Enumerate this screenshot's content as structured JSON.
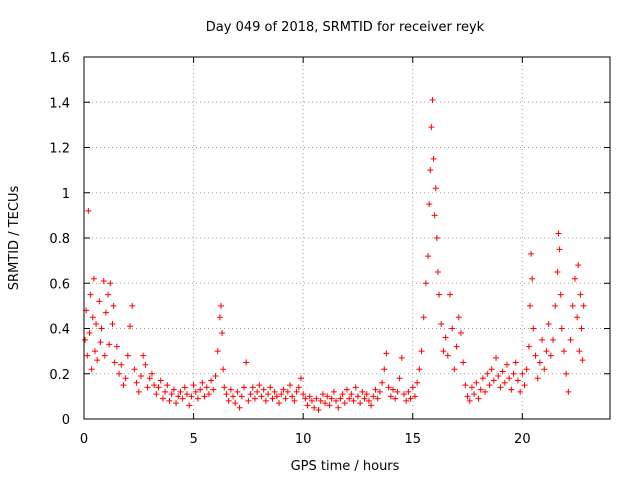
{
  "chart_data": {
    "type": "scatter",
    "title": "Day 049 of 2018, SRMTID for receiver reyk",
    "xlabel": "GPS time / hours",
    "ylabel": "SRMTID / TECUs",
    "xlim": [
      0,
      24
    ],
    "ylim": [
      0,
      1.6
    ],
    "xticks": [
      0,
      5,
      10,
      15,
      20
    ],
    "xtick_labels": [
      "0",
      "5",
      "10",
      "15",
      "20"
    ],
    "yticks": [
      0,
      0.2,
      0.4,
      0.6,
      0.8,
      1.0,
      1.2,
      1.4,
      1.6
    ],
    "ytick_labels": [
      "0",
      "0.2",
      "0.4",
      "0.6",
      "0.8",
      "1",
      "1.2",
      "1.4",
      "1.6"
    ],
    "grid": true,
    "marker": "+",
    "color": "#ff0000",
    "x_data_extent": [
      0,
      22.8
    ],
    "series": [
      {
        "name": "reyk",
        "points": [
          [
            0.05,
            0.35
          ],
          [
            0.1,
            0.48
          ],
          [
            0.15,
            0.28
          ],
          [
            0.2,
            0.92
          ],
          [
            0.25,
            0.38
          ],
          [
            0.3,
            0.55
          ],
          [
            0.35,
            0.22
          ],
          [
            0.4,
            0.45
          ],
          [
            0.45,
            0.62
          ],
          [
            0.5,
            0.3
          ],
          [
            0.55,
            0.42
          ],
          [
            0.6,
            0.26
          ],
          [
            0.7,
            0.52
          ],
          [
            0.75,
            0.34
          ],
          [
            0.8,
            0.4
          ],
          [
            0.9,
            0.61
          ],
          [
            0.95,
            0.28
          ],
          [
            1.0,
            0.47
          ],
          [
            1.1,
            0.55
          ],
          [
            1.15,
            0.33
          ],
          [
            1.2,
            0.6
          ],
          [
            1.3,
            0.42
          ],
          [
            1.35,
            0.5
          ],
          [
            1.4,
            0.25
          ],
          [
            1.5,
            0.32
          ],
          [
            1.6,
            0.2
          ],
          [
            1.7,
            0.24
          ],
          [
            1.8,
            0.15
          ],
          [
            1.9,
            0.18
          ],
          [
            2.0,
            0.28
          ],
          [
            2.1,
            0.41
          ],
          [
            2.2,
            0.5
          ],
          [
            2.3,
            0.22
          ],
          [
            2.4,
            0.16
          ],
          [
            2.5,
            0.12
          ],
          [
            2.6,
            0.19
          ],
          [
            2.7,
            0.28
          ],
          [
            2.8,
            0.24
          ],
          [
            2.9,
            0.14
          ],
          [
            3.0,
            0.18
          ],
          [
            3.1,
            0.2
          ],
          [
            3.2,
            0.15
          ],
          [
            3.3,
            0.11
          ],
          [
            3.4,
            0.14
          ],
          [
            3.5,
            0.17
          ],
          [
            3.6,
            0.09
          ],
          [
            3.7,
            0.12
          ],
          [
            3.8,
            0.15
          ],
          [
            3.9,
            0.08
          ],
          [
            4.0,
            0.11
          ],
          [
            4.1,
            0.13
          ],
          [
            4.2,
            0.07
          ],
          [
            4.3,
            0.1
          ],
          [
            4.4,
            0.12
          ],
          [
            4.5,
            0.09
          ],
          [
            4.6,
            0.14
          ],
          [
            4.7,
            0.11
          ],
          [
            4.8,
            0.06
          ],
          [
            4.9,
            0.1
          ],
          [
            5.0,
            0.15
          ],
          [
            5.1,
            0.12
          ],
          [
            5.2,
            0.09
          ],
          [
            5.3,
            0.13
          ],
          [
            5.4,
            0.16
          ],
          [
            5.5,
            0.1
          ],
          [
            5.6,
            0.14
          ],
          [
            5.7,
            0.11
          ],
          [
            5.8,
            0.17
          ],
          [
            5.9,
            0.13
          ],
          [
            6.0,
            0.19
          ],
          [
            6.1,
            0.3
          ],
          [
            6.2,
            0.45
          ],
          [
            6.25,
            0.5
          ],
          [
            6.3,
            0.38
          ],
          [
            6.35,
            0.22
          ],
          [
            6.4,
            0.14
          ],
          [
            6.5,
            0.11
          ],
          [
            6.6,
            0.08
          ],
          [
            6.7,
            0.13
          ],
          [
            6.8,
            0.1
          ],
          [
            6.9,
            0.07
          ],
          [
            7.0,
            0.12
          ],
          [
            7.1,
            0.05
          ],
          [
            7.2,
            0.1
          ],
          [
            7.3,
            0.14
          ],
          [
            7.4,
            0.25
          ],
          [
            7.5,
            0.08
          ],
          [
            7.6,
            0.11
          ],
          [
            7.7,
            0.14
          ],
          [
            7.8,
            0.09
          ],
          [
            7.9,
            0.12
          ],
          [
            8.0,
            0.15
          ],
          [
            8.1,
            0.1
          ],
          [
            8.2,
            0.13
          ],
          [
            8.3,
            0.08
          ],
          [
            8.4,
            0.11
          ],
          [
            8.5,
            0.14
          ],
          [
            8.6,
            0.09
          ],
          [
            8.7,
            0.12
          ],
          [
            8.8,
            0.1
          ],
          [
            8.9,
            0.07
          ],
          [
            9.0,
            0.11
          ],
          [
            9.1,
            0.13
          ],
          [
            9.2,
            0.09
          ],
          [
            9.3,
            0.12
          ],
          [
            9.4,
            0.15
          ],
          [
            9.5,
            0.1
          ],
          [
            9.6,
            0.08
          ],
          [
            9.7,
            0.12
          ],
          [
            9.8,
            0.14
          ],
          [
            9.9,
            0.18
          ],
          [
            10.0,
            0.11
          ],
          [
            10.1,
            0.09
          ],
          [
            10.2,
            0.06
          ],
          [
            10.3,
            0.1
          ],
          [
            10.4,
            0.08
          ],
          [
            10.5,
            0.05
          ],
          [
            10.6,
            0.09
          ],
          [
            10.7,
            0.04
          ],
          [
            10.8,
            0.08
          ],
          [
            10.9,
            0.11
          ],
          [
            11.0,
            0.07
          ],
          [
            11.1,
            0.1
          ],
          [
            11.2,
            0.06
          ],
          [
            11.3,
            0.09
          ],
          [
            11.4,
            0.12
          ],
          [
            11.5,
            0.08
          ],
          [
            11.6,
            0.05
          ],
          [
            11.7,
            0.09
          ],
          [
            11.8,
            0.11
          ],
          [
            11.9,
            0.07
          ],
          [
            12.0,
            0.13
          ],
          [
            12.1,
            0.09
          ],
          [
            12.2,
            0.11
          ],
          [
            12.3,
            0.08
          ],
          [
            12.4,
            0.14
          ],
          [
            12.5,
            0.1
          ],
          [
            12.6,
            0.07
          ],
          [
            12.7,
            0.12
          ],
          [
            12.8,
            0.09
          ],
          [
            12.9,
            0.11
          ],
          [
            13.0,
            0.08
          ],
          [
            13.1,
            0.06
          ],
          [
            13.2,
            0.1
          ],
          [
            13.3,
            0.13
          ],
          [
            13.4,
            0.09
          ],
          [
            13.5,
            0.12
          ],
          [
            13.6,
            0.16
          ],
          [
            13.7,
            0.22
          ],
          [
            13.8,
            0.29
          ],
          [
            13.9,
            0.14
          ],
          [
            14.0,
            0.1
          ],
          [
            14.1,
            0.13
          ],
          [
            14.2,
            0.09
          ],
          [
            14.3,
            0.12
          ],
          [
            14.4,
            0.18
          ],
          [
            14.5,
            0.27
          ],
          [
            14.6,
            0.11
          ],
          [
            14.7,
            0.08
          ],
          [
            14.8,
            0.12
          ],
          [
            14.9,
            0.09
          ],
          [
            15.0,
            0.14
          ],
          [
            15.1,
            0.1
          ],
          [
            15.2,
            0.16
          ],
          [
            15.3,
            0.22
          ],
          [
            15.4,
            0.3
          ],
          [
            15.5,
            0.45
          ],
          [
            15.6,
            0.6
          ],
          [
            15.7,
            0.72
          ],
          [
            15.75,
            0.95
          ],
          [
            15.8,
            1.1
          ],
          [
            15.85,
            1.29
          ],
          [
            15.9,
            1.41
          ],
          [
            15.95,
            1.15
          ],
          [
            16.0,
            0.9
          ],
          [
            16.05,
            1.02
          ],
          [
            16.1,
            0.8
          ],
          [
            16.15,
            0.65
          ],
          [
            16.2,
            0.55
          ],
          [
            16.3,
            0.42
          ],
          [
            16.4,
            0.3
          ],
          [
            16.5,
            0.36
          ],
          [
            16.6,
            0.28
          ],
          [
            16.7,
            0.55
          ],
          [
            16.8,
            0.4
          ],
          [
            16.9,
            0.22
          ],
          [
            17.0,
            0.32
          ],
          [
            17.1,
            0.45
          ],
          [
            17.2,
            0.38
          ],
          [
            17.3,
            0.25
          ],
          [
            17.4,
            0.15
          ],
          [
            17.5,
            0.1
          ],
          [
            17.6,
            0.08
          ],
          [
            17.7,
            0.14
          ],
          [
            17.8,
            0.11
          ],
          [
            17.9,
            0.16
          ],
          [
            18.0,
            0.09
          ],
          [
            18.1,
            0.13
          ],
          [
            18.2,
            0.18
          ],
          [
            18.3,
            0.12
          ],
          [
            18.4,
            0.2
          ],
          [
            18.5,
            0.15
          ],
          [
            18.6,
            0.22
          ],
          [
            18.7,
            0.17
          ],
          [
            18.8,
            0.27
          ],
          [
            18.9,
            0.19
          ],
          [
            19.0,
            0.14
          ],
          [
            19.1,
            0.21
          ],
          [
            19.2,
            0.16
          ],
          [
            19.3,
            0.24
          ],
          [
            19.4,
            0.18
          ],
          [
            19.5,
            0.13
          ],
          [
            19.6,
            0.2
          ],
          [
            19.7,
            0.25
          ],
          [
            19.8,
            0.17
          ],
          [
            19.9,
            0.12
          ],
          [
            20.0,
            0.2
          ],
          [
            20.1,
            0.15
          ],
          [
            20.2,
            0.22
          ],
          [
            20.3,
            0.32
          ],
          [
            20.35,
            0.5
          ],
          [
            20.4,
            0.73
          ],
          [
            20.45,
            0.62
          ],
          [
            20.5,
            0.4
          ],
          [
            20.6,
            0.28
          ],
          [
            20.7,
            0.18
          ],
          [
            20.8,
            0.25
          ],
          [
            20.9,
            0.35
          ],
          [
            21.0,
            0.22
          ],
          [
            21.1,
            0.3
          ],
          [
            21.2,
            0.42
          ],
          [
            21.3,
            0.28
          ],
          [
            21.4,
            0.35
          ],
          [
            21.5,
            0.5
          ],
          [
            21.6,
            0.65
          ],
          [
            21.65,
            0.82
          ],
          [
            21.7,
            0.75
          ],
          [
            21.75,
            0.55
          ],
          [
            21.8,
            0.4
          ],
          [
            21.9,
            0.3
          ],
          [
            22.0,
            0.2
          ],
          [
            22.1,
            0.12
          ],
          [
            22.2,
            0.35
          ],
          [
            22.3,
            0.5
          ],
          [
            22.4,
            0.62
          ],
          [
            22.5,
            0.45
          ],
          [
            22.55,
            0.68
          ],
          [
            22.6,
            0.3
          ],
          [
            22.65,
            0.55
          ],
          [
            22.7,
            0.4
          ],
          [
            22.75,
            0.26
          ],
          [
            22.8,
            0.5
          ]
        ]
      }
    ]
  }
}
